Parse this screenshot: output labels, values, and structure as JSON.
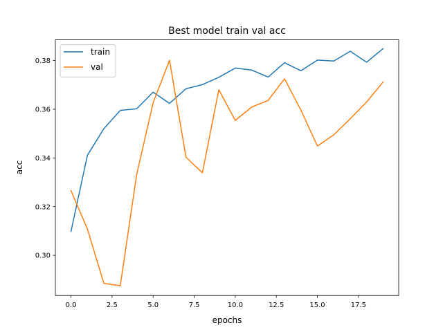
{
  "chart_data": {
    "type": "line",
    "title": "Best model train val acc",
    "xlabel": "epochs",
    "ylabel": "acc",
    "x": [
      0,
      1,
      2,
      3,
      4,
      5,
      6,
      7,
      8,
      9,
      10,
      11,
      12,
      13,
      14,
      15,
      16,
      17,
      18,
      19
    ],
    "xlim": [
      -0.95,
      19.95
    ],
    "ylim": [
      0.2835,
      0.3885
    ],
    "xticks": [
      0.0,
      2.5,
      5.0,
      7.5,
      10.0,
      12.5,
      15.0,
      17.5
    ],
    "xtick_labels": [
      "0.0",
      "2.5",
      "5.0",
      "7.5",
      "10.0",
      "12.5",
      "15.0",
      "17.5"
    ],
    "yticks": [
      0.3,
      0.32,
      0.34,
      0.36,
      0.38
    ],
    "ytick_labels": [
      "0.30",
      "0.32",
      "0.34",
      "0.36",
      "0.38"
    ],
    "grid": false,
    "legend_position": "top-left",
    "series": [
      {
        "name": "train",
        "color": "#1f77b4",
        "values": [
          0.3098,
          0.3411,
          0.352,
          0.3595,
          0.3602,
          0.367,
          0.3624,
          0.3684,
          0.3701,
          0.3731,
          0.3769,
          0.3761,
          0.3732,
          0.3791,
          0.3758,
          0.3802,
          0.3798,
          0.3838,
          0.3793,
          0.3849
        ]
      },
      {
        "name": "val",
        "color": "#ff7f0e",
        "values": [
          0.3266,
          0.3108,
          0.2885,
          0.2875,
          0.3332,
          0.3627,
          0.3801,
          0.3403,
          0.3339,
          0.368,
          0.3554,
          0.3609,
          0.3636,
          0.3725,
          0.3596,
          0.3449,
          0.3495,
          0.3561,
          0.363,
          0.3712
        ]
      }
    ]
  }
}
